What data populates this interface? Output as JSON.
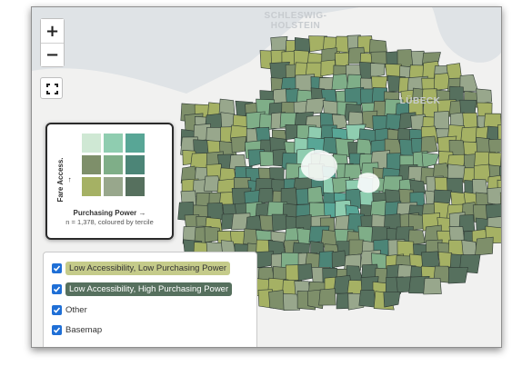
{
  "map": {
    "place_labels": [
      "SCHLESWIG-\nHOLSTEIN",
      "LÜBECK"
    ],
    "colors": {
      "water": "#dfe3e6",
      "land": "#f1f1f0",
      "urban": "#ffffff",
      "boundary": "#2f3a34"
    },
    "palette": [
      "#cfe8d4",
      "#8fcdb0",
      "#58a696",
      "#7e8f6a",
      "#7fae88",
      "#4c8577",
      "#a5b164",
      "#98a78c",
      "#56705e"
    ]
  },
  "controls": {
    "zoom_in": "+",
    "zoom_out": "−",
    "fullscreen_icon": "fullscreen-icon"
  },
  "legend": {
    "y_label": "Fare Access. →",
    "x_label": "Purchasing Power →",
    "note": "n = 1,378, coloured by tercile",
    "cells": [
      [
        "#cfe8d4",
        "#8fcdb0",
        "#58a696"
      ],
      [
        "#7e8f6a",
        "#7fae88",
        "#4c8577"
      ],
      [
        "#a5b164",
        "#98a78c",
        "#56705e"
      ]
    ]
  },
  "layers": [
    {
      "label": "Low Accessibility, Low Purchasing Power",
      "checked": true,
      "bg": "#c5cb8a"
    },
    {
      "label": "Low Accessibility, High Purchasing Power",
      "checked": true,
      "bg": "#56705e"
    },
    {
      "label": "Other",
      "checked": true,
      "bg": ""
    },
    {
      "label": "Basemap",
      "checked": true,
      "bg": ""
    }
  ]
}
